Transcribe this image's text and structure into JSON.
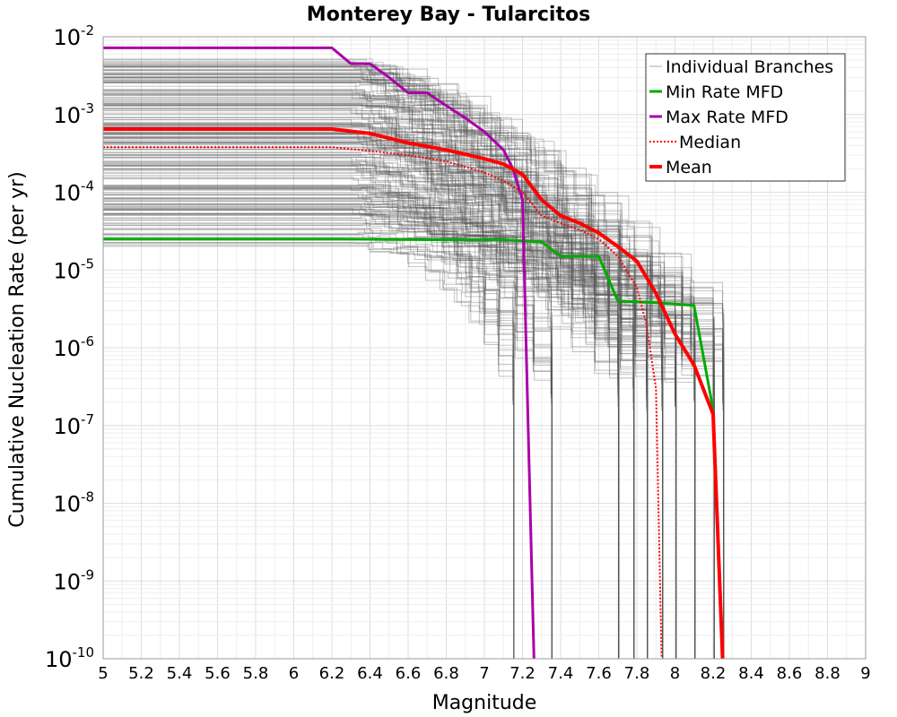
{
  "chart_data": {
    "type": "line",
    "title": "Monterey Bay - Tularcitos",
    "xlabel": "Magnitude",
    "ylabel": "Cumulative Nucleation Rate (per yr)",
    "xlim": [
      5,
      9
    ],
    "ylim": [
      1e-10,
      0.01
    ],
    "yscale": "log",
    "grid": true,
    "legend_position": "top-right",
    "x_ticks": [
      "5",
      "5.2",
      "5.4",
      "5.6",
      "5.8",
      "6",
      "6.2",
      "6.4",
      "6.6",
      "6.8",
      "7",
      "7.2",
      "7.4",
      "7.6",
      "7.8",
      "8",
      "8.2",
      "8.4",
      "8.6",
      "8.8",
      "9"
    ],
    "y_ticks": [
      {
        "base": "10",
        "exp": "-2"
      },
      {
        "base": "10",
        "exp": "-3"
      },
      {
        "base": "10",
        "exp": "-4"
      },
      {
        "base": "10",
        "exp": "-5"
      },
      {
        "base": "10",
        "exp": "-6"
      },
      {
        "base": "10",
        "exp": "-7"
      },
      {
        "base": "10",
        "exp": "-8"
      },
      {
        "base": "10",
        "exp": "-9"
      },
      {
        "base": "10",
        "exp": "-10"
      }
    ],
    "series": [
      {
        "name": "Individual Branches",
        "color": "#555555",
        "style": "thin-many",
        "x": [
          5,
          6.2,
          6.6,
          7.0,
          7.2,
          7.4,
          7.6,
          7.8,
          8.0,
          8.2
        ],
        "y": [
          0.0003,
          0.0003,
          0.00022,
          0.00013,
          7e-05,
          3e-05,
          1.2e-05,
          4e-06,
          1.5e-06,
          5e-07
        ]
      },
      {
        "name": "Min Rate MFD",
        "color": "#00aa00",
        "style": "solid",
        "x": [
          5.0,
          6.2,
          6.7,
          7.1,
          7.3,
          7.4,
          7.6,
          7.7,
          7.9,
          8.1,
          8.2
        ],
        "y": [
          2.5e-05,
          2.5e-05,
          2.45e-05,
          2.45e-05,
          2.3e-05,
          1.5e-05,
          1.5e-05,
          4e-06,
          3.8e-06,
          3.5e-06,
          1.6e-07
        ]
      },
      {
        "name": "Max Rate MFD",
        "color": "#aa00aa",
        "style": "solid",
        "x": [
          5.0,
          6.2,
          6.3,
          6.4,
          6.5,
          6.6,
          6.7,
          6.8,
          6.9,
          7.0,
          7.1,
          7.15,
          7.2,
          7.25,
          7.26
        ],
        "y": [
          0.0072,
          0.0072,
          0.0045,
          0.0045,
          0.003,
          0.0019,
          0.0019,
          0.0013,
          0.0009,
          0.0006,
          0.00035,
          0.0002,
          8e-05,
          1e-09,
          1e-10
        ]
      },
      {
        "name": "Median",
        "color": "#ff0000",
        "style": "dotted",
        "x": [
          5.0,
          6.2,
          6.4,
          6.6,
          6.8,
          7.0,
          7.1,
          7.2,
          7.3,
          7.4,
          7.5,
          7.6,
          7.7,
          7.8,
          7.85,
          7.9,
          7.93
        ],
        "y": [
          0.00038,
          0.00038,
          0.00034,
          0.0003,
          0.00025,
          0.00018,
          0.00014,
          0.0001,
          5e-05,
          4e-05,
          3.3e-05,
          2.5e-05,
          1.5e-05,
          6e-06,
          2e-06,
          3e-07,
          1e-10
        ]
      },
      {
        "name": "Mean",
        "color": "#ff0000",
        "style": "thick",
        "x": [
          5.0,
          6.2,
          6.4,
          6.6,
          6.8,
          7.0,
          7.1,
          7.2,
          7.3,
          7.4,
          7.5,
          7.6,
          7.7,
          7.8,
          7.9,
          8.0,
          8.1,
          8.2,
          8.25
        ],
        "y": [
          0.00065,
          0.00065,
          0.00057,
          0.00043,
          0.00035,
          0.00027,
          0.00023,
          0.00017,
          8e-05,
          5e-05,
          4e-05,
          3e-05,
          2e-05,
          1.3e-05,
          5e-06,
          1.5e-06,
          6e-07,
          1.4e-07,
          1e-10
        ]
      }
    ]
  }
}
